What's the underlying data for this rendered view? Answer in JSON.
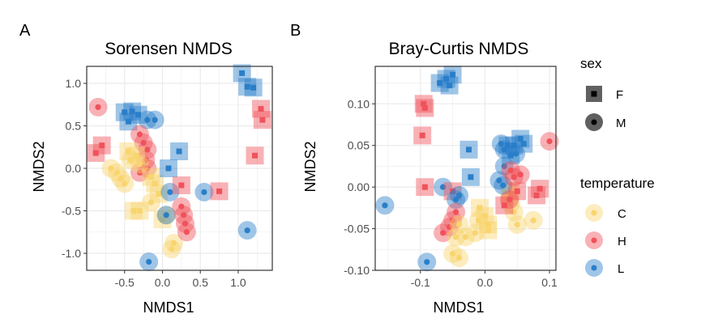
{
  "colors": {
    "C": "#F9D56E",
    "H": "#F0525A",
    "L": "#2A7FC9",
    "grid": "#EBEBEB",
    "border": "#333333"
  },
  "legend": {
    "sex": {
      "title": "sex",
      "items": [
        {
          "label": "F",
          "shape": "square"
        },
        {
          "label": "M",
          "shape": "circle"
        }
      ]
    },
    "temperature": {
      "title": "temperature",
      "items": [
        {
          "label": "C",
          "key": "C"
        },
        {
          "label": "H",
          "key": "H"
        },
        {
          "label": "L",
          "key": "L"
        }
      ]
    }
  },
  "chart_data": [
    {
      "panel_label": "A",
      "type": "scatter",
      "title": "Sorensen NMDS",
      "xlabel": "NMDS1",
      "ylabel": "NMDS2",
      "xlim": [
        -1.0,
        1.45
      ],
      "ylim": [
        -1.2,
        1.2
      ],
      "xticks": [
        -0.5,
        0.0,
        0.5,
        1.0
      ],
      "xtick_labels": [
        "-0.5",
        "0.0",
        "0.5",
        "1.0"
      ],
      "yticks": [
        -1.0,
        -0.5,
        0.0,
        0.5,
        1.0
      ],
      "ytick_labels": [
        "-1.0",
        "-0.5",
        "0.0",
        "0.5",
        "1.0"
      ],
      "grid": true,
      "points": [
        {
          "x": 1.05,
          "y": 1.12,
          "temp": "L",
          "sex": "F"
        },
        {
          "x": 1.12,
          "y": 0.96,
          "temp": "L",
          "sex": "F"
        },
        {
          "x": 1.2,
          "y": 0.95,
          "temp": "L",
          "sex": "F"
        },
        {
          "x": 1.3,
          "y": 0.7,
          "temp": "H",
          "sex": "F"
        },
        {
          "x": 1.32,
          "y": 0.57,
          "temp": "H",
          "sex": "F"
        },
        {
          "x": 1.22,
          "y": 0.15,
          "temp": "H",
          "sex": "F"
        },
        {
          "x": 1.12,
          "y": -0.73,
          "temp": "L",
          "sex": "M"
        },
        {
          "x": -0.85,
          "y": 0.72,
          "temp": "H",
          "sex": "M"
        },
        {
          "x": -0.8,
          "y": 0.27,
          "temp": "H",
          "sex": "F"
        },
        {
          "x": -0.88,
          "y": 0.18,
          "temp": "H",
          "sex": "F"
        },
        {
          "x": -0.5,
          "y": 0.66,
          "temp": "L",
          "sex": "F"
        },
        {
          "x": -0.4,
          "y": 0.67,
          "temp": "L",
          "sex": "F"
        },
        {
          "x": -0.32,
          "y": 0.63,
          "temp": "L",
          "sex": "F"
        },
        {
          "x": -0.45,
          "y": 0.55,
          "temp": "L",
          "sex": "F"
        },
        {
          "x": -0.2,
          "y": 0.57,
          "temp": "L",
          "sex": "M"
        },
        {
          "x": -0.1,
          "y": 0.57,
          "temp": "L",
          "sex": "M"
        },
        {
          "x": -0.3,
          "y": 0.4,
          "temp": "H",
          "sex": "M"
        },
        {
          "x": -0.25,
          "y": 0.3,
          "temp": "H",
          "sex": "M"
        },
        {
          "x": -0.2,
          "y": 0.22,
          "temp": "H",
          "sex": "M"
        },
        {
          "x": -0.22,
          "y": 0.1,
          "temp": "H",
          "sex": "M"
        },
        {
          "x": -0.2,
          "y": 0.0,
          "temp": "H",
          "sex": "M"
        },
        {
          "x": -0.3,
          "y": -0.05,
          "temp": "H",
          "sex": "M"
        },
        {
          "x": -0.45,
          "y": 0.2,
          "temp": "C",
          "sex": "F"
        },
        {
          "x": -0.35,
          "y": 0.15,
          "temp": "C",
          "sex": "F"
        },
        {
          "x": -0.42,
          "y": 0.1,
          "temp": "C",
          "sex": "M"
        },
        {
          "x": -0.3,
          "y": 0.05,
          "temp": "C",
          "sex": "M"
        },
        {
          "x": -0.68,
          "y": 0.0,
          "temp": "C",
          "sex": "M"
        },
        {
          "x": -0.6,
          "y": -0.05,
          "temp": "C",
          "sex": "M"
        },
        {
          "x": -0.55,
          "y": -0.12,
          "temp": "C",
          "sex": "M"
        },
        {
          "x": -0.5,
          "y": -0.18,
          "temp": "C",
          "sex": "M"
        },
        {
          "x": -0.15,
          "y": -0.1,
          "temp": "C",
          "sex": "F"
        },
        {
          "x": -0.1,
          "y": -0.18,
          "temp": "C",
          "sex": "F"
        },
        {
          "x": -0.05,
          "y": -0.3,
          "temp": "C",
          "sex": "F"
        },
        {
          "x": -0.15,
          "y": -0.4,
          "temp": "C",
          "sex": "M"
        },
        {
          "x": -0.3,
          "y": -0.5,
          "temp": "C",
          "sex": "F"
        },
        {
          "x": -0.38,
          "y": -0.5,
          "temp": "C",
          "sex": "F"
        },
        {
          "x": 0.05,
          "y": -0.55,
          "temp": "C",
          "sex": "M"
        },
        {
          "x": 0.0,
          "y": -0.6,
          "temp": "C",
          "sex": "F"
        },
        {
          "x": 0.15,
          "y": -0.88,
          "temp": "C",
          "sex": "M"
        },
        {
          "x": 0.12,
          "y": -0.95,
          "temp": "C",
          "sex": "M"
        },
        {
          "x": 0.22,
          "y": 0.2,
          "temp": "L",
          "sex": "F"
        },
        {
          "x": 0.08,
          "y": 0.0,
          "temp": "L",
          "sex": "F"
        },
        {
          "x": 0.1,
          "y": -0.28,
          "temp": "L",
          "sex": "M"
        },
        {
          "x": 0.55,
          "y": -0.28,
          "temp": "L",
          "sex": "M"
        },
        {
          "x": 0.05,
          "y": -0.55,
          "temp": "L",
          "sex": "M"
        },
        {
          "x": -0.18,
          "y": -1.1,
          "temp": "L",
          "sex": "M"
        },
        {
          "x": 0.25,
          "y": -0.2,
          "temp": "H",
          "sex": "F"
        },
        {
          "x": 0.75,
          "y": -0.27,
          "temp": "H",
          "sex": "F"
        },
        {
          "x": 0.25,
          "y": -0.45,
          "temp": "H",
          "sex": "M"
        },
        {
          "x": 0.28,
          "y": -0.55,
          "temp": "H",
          "sex": "M"
        },
        {
          "x": 0.3,
          "y": -0.65,
          "temp": "H",
          "sex": "M"
        },
        {
          "x": 0.32,
          "y": -0.75,
          "temp": "H",
          "sex": "M"
        }
      ]
    },
    {
      "panel_label": "B",
      "type": "scatter",
      "title": "Bray-Curtis NMDS",
      "xlabel": "NMDS1",
      "ylabel": "NMDS2",
      "xlim": [
        -0.17,
        0.11
      ],
      "ylim": [
        -0.1,
        0.145
      ],
      "xticks": [
        -0.1,
        0.0,
        0.1
      ],
      "xtick_labels": [
        "-0.1",
        "0.0",
        "0.1"
      ],
      "yticks": [
        -0.1,
        -0.05,
        0.0,
        0.05,
        0.1
      ],
      "ytick_labels": [
        "-0.10",
        "-0.05",
        "0.00",
        "0.05",
        "0.10"
      ],
      "grid": true,
      "points": [
        {
          "x": -0.07,
          "y": 0.125,
          "temp": "L",
          "sex": "F"
        },
        {
          "x": -0.06,
          "y": 0.13,
          "temp": "L",
          "sex": "F"
        },
        {
          "x": -0.05,
          "y": 0.135,
          "temp": "L",
          "sex": "F"
        },
        {
          "x": -0.055,
          "y": 0.122,
          "temp": "L",
          "sex": "F"
        },
        {
          "x": -0.095,
          "y": 0.1,
          "temp": "H",
          "sex": "F"
        },
        {
          "x": -0.093,
          "y": 0.095,
          "temp": "H",
          "sex": "F"
        },
        {
          "x": -0.097,
          "y": 0.062,
          "temp": "H",
          "sex": "F"
        },
        {
          "x": -0.093,
          "y": 0.0,
          "temp": "H",
          "sex": "F"
        },
        {
          "x": -0.025,
          "y": 0.045,
          "temp": "L",
          "sex": "F"
        },
        {
          "x": -0.022,
          "y": 0.012,
          "temp": "L",
          "sex": "F"
        },
        {
          "x": -0.065,
          "y": 0.0,
          "temp": "L",
          "sex": "M"
        },
        {
          "x": -0.05,
          "y": -0.005,
          "temp": "H",
          "sex": "F"
        },
        {
          "x": -0.045,
          "y": -0.015,
          "temp": "L",
          "sex": "M"
        },
        {
          "x": -0.04,
          "y": -0.01,
          "temp": "L",
          "sex": "M"
        },
        {
          "x": -0.045,
          "y": -0.03,
          "temp": "H",
          "sex": "M"
        },
        {
          "x": -0.05,
          "y": -0.04,
          "temp": "H",
          "sex": "M"
        },
        {
          "x": -0.055,
          "y": -0.048,
          "temp": "H",
          "sex": "M"
        },
        {
          "x": -0.065,
          "y": -0.055,
          "temp": "H",
          "sex": "M"
        },
        {
          "x": -0.04,
          "y": -0.045,
          "temp": "C",
          "sex": "M"
        },
        {
          "x": -0.03,
          "y": -0.06,
          "temp": "C",
          "sex": "M"
        },
        {
          "x": -0.015,
          "y": -0.055,
          "temp": "C",
          "sex": "M"
        },
        {
          "x": -0.045,
          "y": -0.06,
          "temp": "C",
          "sex": "M"
        },
        {
          "x": -0.05,
          "y": -0.08,
          "temp": "C",
          "sex": "M"
        },
        {
          "x": -0.04,
          "y": -0.085,
          "temp": "C",
          "sex": "M"
        },
        {
          "x": -0.155,
          "y": -0.022,
          "temp": "L",
          "sex": "M"
        },
        {
          "x": -0.09,
          "y": -0.09,
          "temp": "L",
          "sex": "M"
        },
        {
          "x": -0.008,
          "y": -0.025,
          "temp": "C",
          "sex": "F"
        },
        {
          "x": 0.0,
          "y": -0.035,
          "temp": "C",
          "sex": "F"
        },
        {
          "x": 0.005,
          "y": -0.045,
          "temp": "C",
          "sex": "F"
        },
        {
          "x": 0.005,
          "y": -0.052,
          "temp": "C",
          "sex": "F"
        },
        {
          "x": -0.01,
          "y": -0.04,
          "temp": "C",
          "sex": "M"
        },
        {
          "x": 0.04,
          "y": -0.005,
          "temp": "C",
          "sex": "F"
        },
        {
          "x": 0.038,
          "y": -0.01,
          "temp": "C",
          "sex": "F"
        },
        {
          "x": 0.04,
          "y": -0.02,
          "temp": "C",
          "sex": "M"
        },
        {
          "x": 0.045,
          "y": -0.03,
          "temp": "C",
          "sex": "M"
        },
        {
          "x": 0.05,
          "y": -0.045,
          "temp": "C",
          "sex": "M"
        },
        {
          "x": 0.075,
          "y": -0.04,
          "temp": "C",
          "sex": "M"
        },
        {
          "x": 0.025,
          "y": 0.052,
          "temp": "L",
          "sex": "M"
        },
        {
          "x": 0.03,
          "y": 0.045,
          "temp": "L",
          "sex": "M"
        },
        {
          "x": 0.035,
          "y": 0.05,
          "temp": "L",
          "sex": "F"
        },
        {
          "x": 0.045,
          "y": 0.05,
          "temp": "L",
          "sex": "F"
        },
        {
          "x": 0.055,
          "y": 0.058,
          "temp": "L",
          "sex": "F"
        },
        {
          "x": 0.06,
          "y": 0.052,
          "temp": "L",
          "sex": "F"
        },
        {
          "x": 0.04,
          "y": 0.038,
          "temp": "L",
          "sex": "F"
        },
        {
          "x": 0.048,
          "y": 0.04,
          "temp": "L",
          "sex": "M"
        },
        {
          "x": 0.03,
          "y": 0.025,
          "temp": "L",
          "sex": "M"
        },
        {
          "x": 0.022,
          "y": 0.008,
          "temp": "L",
          "sex": "M"
        },
        {
          "x": 0.028,
          "y": 0.002,
          "temp": "L",
          "sex": "M"
        },
        {
          "x": 0.04,
          "y": 0.02,
          "temp": "H",
          "sex": "M"
        },
        {
          "x": 0.045,
          "y": 0.012,
          "temp": "H",
          "sex": "M"
        },
        {
          "x": 0.055,
          "y": 0.015,
          "temp": "H",
          "sex": "M"
        },
        {
          "x": 0.1,
          "y": 0.055,
          "temp": "H",
          "sex": "M"
        },
        {
          "x": 0.085,
          "y": -0.002,
          "temp": "H",
          "sex": "F"
        },
        {
          "x": 0.08,
          "y": -0.01,
          "temp": "H",
          "sex": "F"
        },
        {
          "x": 0.05,
          "y": -0.005,
          "temp": "H",
          "sex": "F"
        },
        {
          "x": 0.03,
          "y": -0.022,
          "temp": "H",
          "sex": "F"
        },
        {
          "x": 0.038,
          "y": -0.015,
          "temp": "H",
          "sex": "M"
        }
      ]
    }
  ]
}
